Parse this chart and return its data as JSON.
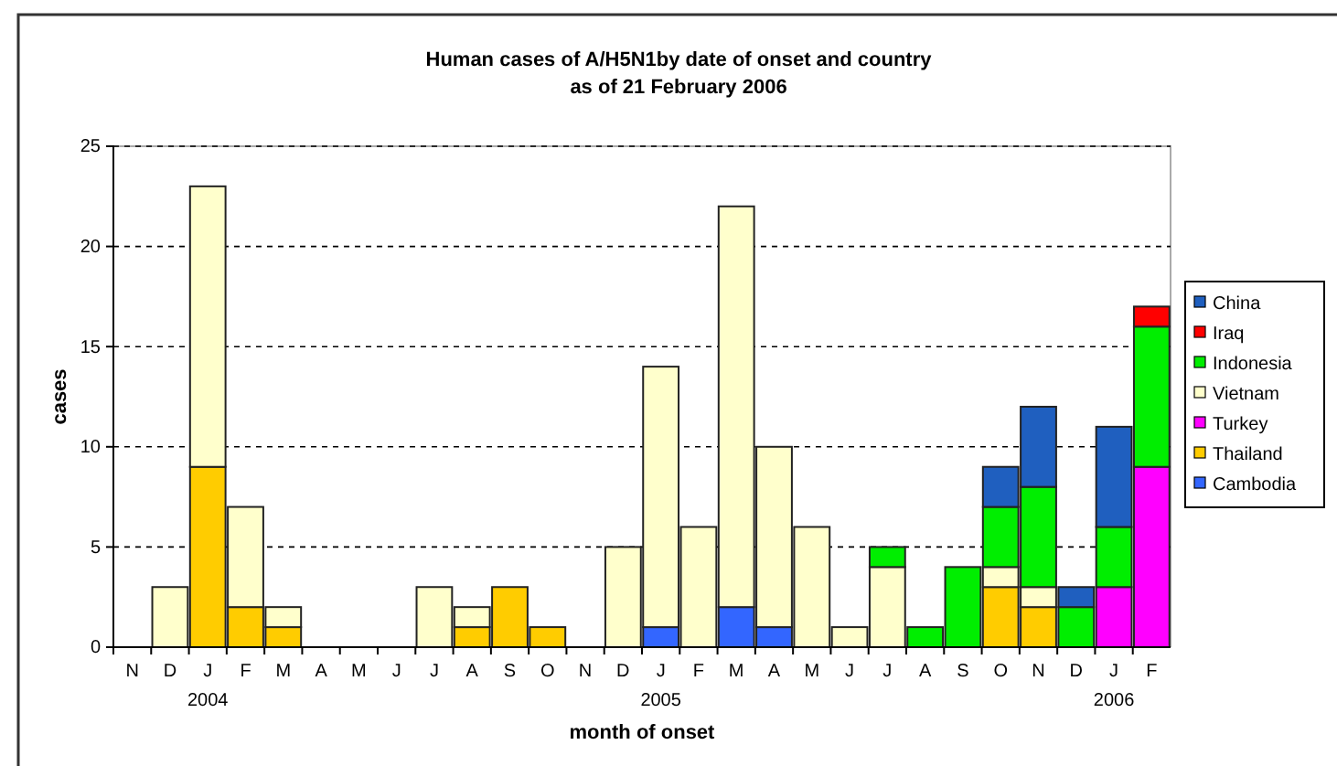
{
  "chart_data": {
    "type": "bar",
    "stacked": true,
    "title": "Human cases of A/H5N1by date of onset and country",
    "subtitle": "as of 21 February 2006",
    "xlabel": "month of onset",
    "ylabel": "cases",
    "categories": [
      "N",
      "D",
      "J\n2004",
      "F",
      "M",
      "A",
      "M",
      "J",
      "J",
      "A",
      "S",
      "O",
      "N",
      "D",
      "J\n2005",
      "F",
      "M",
      "A",
      "M",
      "J",
      "J",
      "A",
      "S",
      "O",
      "N",
      "D",
      "J\n2006",
      "F"
    ],
    "series": [
      {
        "name": "Cambodia",
        "color": "#3366ff",
        "values": [
          0,
          0,
          0,
          0,
          0,
          0,
          0,
          0,
          0,
          0,
          0,
          0,
          0,
          0,
          1,
          0,
          2,
          1,
          0,
          0,
          0,
          0,
          0,
          0,
          0,
          0,
          0,
          0
        ]
      },
      {
        "name": "Thailand",
        "color": "#ffcc00",
        "values": [
          0,
          0,
          9,
          2,
          1,
          0,
          0,
          0,
          0,
          1,
          3,
          1,
          0,
          0,
          0,
          0,
          0,
          0,
          0,
          0,
          0,
          0,
          0,
          3,
          2,
          0,
          0,
          0
        ]
      },
      {
        "name": "Turkey",
        "color": "#ff00ff",
        "values": [
          0,
          0,
          0,
          0,
          0,
          0,
          0,
          0,
          0,
          0,
          0,
          0,
          0,
          0,
          0,
          0,
          0,
          0,
          0,
          0,
          0,
          0,
          0,
          0,
          0,
          0,
          3,
          9
        ]
      },
      {
        "name": "Vietnam",
        "color": "#ffffcc",
        "values": [
          0,
          3,
          14,
          5,
          1,
          0,
          0,
          0,
          3,
          1,
          0,
          0,
          0,
          5,
          13,
          6,
          20,
          9,
          6,
          1,
          4,
          0,
          0,
          1,
          1,
          0,
          0,
          0
        ]
      },
      {
        "name": "Indonesia",
        "color": "#00ee00",
        "values": [
          0,
          0,
          0,
          0,
          0,
          0,
          0,
          0,
          0,
          0,
          0,
          0,
          0,
          0,
          0,
          0,
          0,
          0,
          0,
          0,
          1,
          1,
          4,
          3,
          5,
          2,
          3,
          7
        ]
      },
      {
        "name": "Iraq",
        "color": "#ff0000",
        "values": [
          0,
          0,
          0,
          0,
          0,
          0,
          0,
          0,
          0,
          0,
          0,
          0,
          0,
          0,
          0,
          0,
          0,
          0,
          0,
          0,
          0,
          0,
          0,
          0,
          0,
          0,
          0,
          1
        ]
      },
      {
        "name": "China",
        "color": "#1f5fbf",
        "values": [
          0,
          0,
          0,
          0,
          0,
          0,
          0,
          0,
          0,
          0,
          0,
          0,
          0,
          0,
          0,
          0,
          0,
          0,
          0,
          0,
          0,
          0,
          0,
          2,
          4,
          1,
          5,
          0
        ]
      }
    ],
    "ylim": [
      0,
      25
    ],
    "yticks": [
      0,
      5,
      10,
      15,
      20,
      25
    ],
    "grid": "y",
    "legend": "right"
  }
}
